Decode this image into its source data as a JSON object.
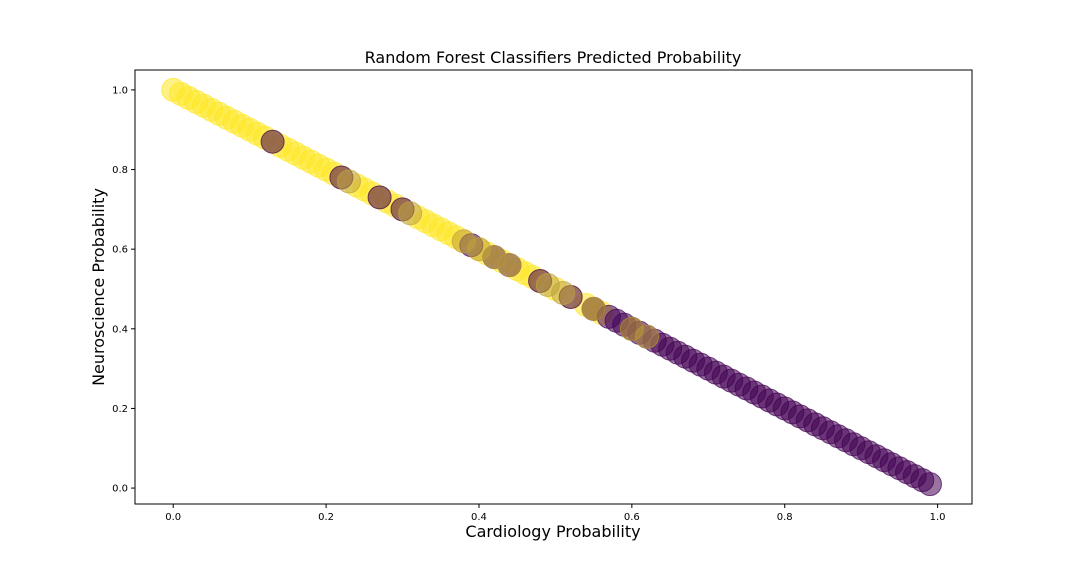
{
  "chart_data": {
    "type": "scatter",
    "title": "Random Forest Classifiers Predicted Probability",
    "xlabel": "Cardiology Probability",
    "ylabel": "Neuroscience Probability",
    "xlim": [
      -0.05,
      1.045
    ],
    "ylim": [
      -0.04,
      1.05
    ],
    "xticks": [
      0.0,
      0.2,
      0.4,
      0.6,
      0.8,
      1.0
    ],
    "xtick_labels": [
      "0.0",
      "0.2",
      "0.4",
      "0.6",
      "0.8",
      "1.0"
    ],
    "yticks": [
      0.0,
      0.2,
      0.4,
      0.6,
      0.8,
      1.0
    ],
    "ytick_labels": [
      "0.0",
      "0.2",
      "0.4",
      "0.6",
      "0.8",
      "1.0"
    ],
    "grid": false,
    "relationship": "y = 1 - x",
    "colors": {
      "class_a": "#fde725",
      "class_b": "#440154",
      "mixed": "#c0a23c"
    },
    "marker_alpha": 0.55,
    "series": [
      {
        "class": "class_a",
        "x": [
          0.0,
          0.01,
          0.02,
          0.03,
          0.04,
          0.05,
          0.06,
          0.07,
          0.08,
          0.09,
          0.1,
          0.11,
          0.12,
          0.13,
          0.14,
          0.15,
          0.16,
          0.17,
          0.18,
          0.19,
          0.2,
          0.21,
          0.22,
          0.24,
          0.25,
          0.26,
          0.27,
          0.28,
          0.29,
          0.3,
          0.32,
          0.33,
          0.34,
          0.35,
          0.36,
          0.37,
          0.38,
          0.4,
          0.41,
          0.43,
          0.45,
          0.46,
          0.47,
          0.48,
          0.5,
          0.52,
          0.54,
          0.55,
          0.56,
          0.6
        ]
      },
      {
        "class": "class_b",
        "x": [
          0.13,
          0.22,
          0.27,
          0.3,
          0.39,
          0.42,
          0.44,
          0.48,
          0.52,
          0.55,
          0.57,
          0.58,
          0.59,
          0.6,
          0.61,
          0.62,
          0.63,
          0.64,
          0.65,
          0.66,
          0.67,
          0.68,
          0.69,
          0.7,
          0.71,
          0.72,
          0.73,
          0.74,
          0.75,
          0.76,
          0.77,
          0.78,
          0.79,
          0.8,
          0.81,
          0.82,
          0.83,
          0.84,
          0.85,
          0.86,
          0.87,
          0.88,
          0.89,
          0.9,
          0.91,
          0.92,
          0.93,
          0.94,
          0.95,
          0.96,
          0.97,
          0.98,
          0.99
        ]
      },
      {
        "class": "mixed",
        "x": [
          0.23,
          0.31,
          0.38,
          0.4,
          0.42,
          0.44,
          0.49,
          0.51,
          0.55,
          0.6,
          0.62
        ]
      }
    ]
  }
}
